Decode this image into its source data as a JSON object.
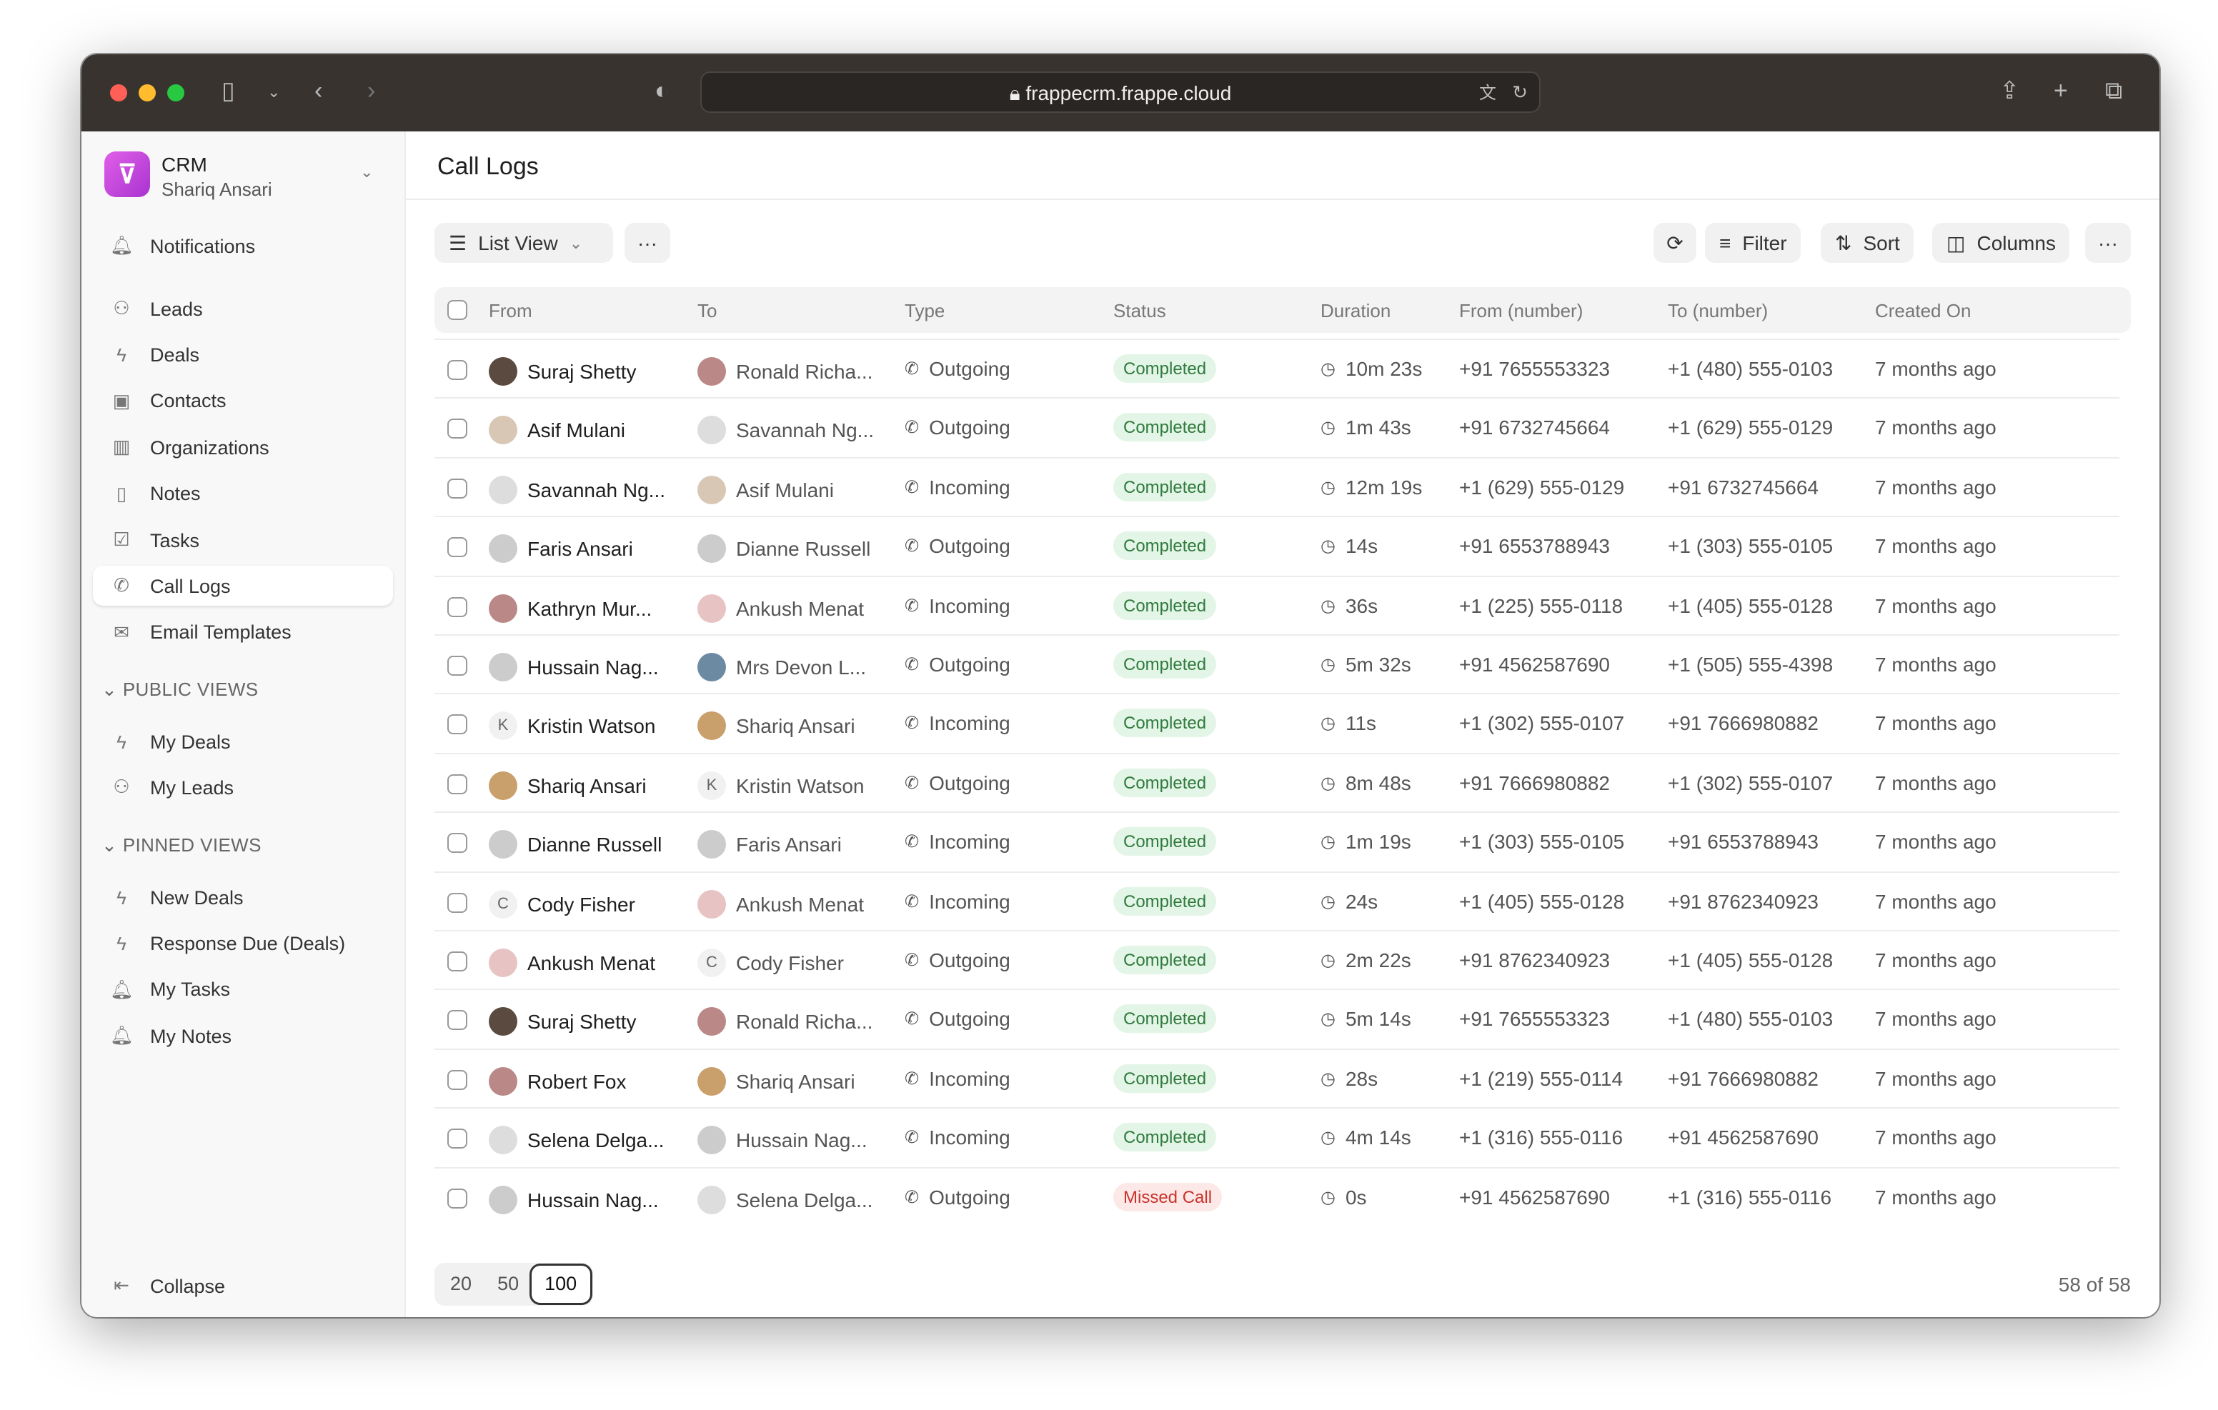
{
  "browser": {
    "url": "frappecrm.frappe.cloud"
  },
  "app": {
    "name": "CRM",
    "user": "Shariq Ansari"
  },
  "sidebar": {
    "notifications": "Notifications",
    "items": [
      {
        "label": "Leads",
        "icon": "users-icon"
      },
      {
        "label": "Deals",
        "icon": "bolt-icon"
      },
      {
        "label": "Contacts",
        "icon": "contact-icon"
      },
      {
        "label": "Organizations",
        "icon": "building-icon"
      },
      {
        "label": "Notes",
        "icon": "note-icon"
      },
      {
        "label": "Tasks",
        "icon": "check-square-icon"
      },
      {
        "label": "Call Logs",
        "icon": "phone-icon",
        "active": true
      },
      {
        "label": "Email Templates",
        "icon": "mail-icon"
      }
    ],
    "public_views_title": "PUBLIC VIEWS",
    "public_views": [
      {
        "label": "My Deals",
        "icon": "bolt-icon"
      },
      {
        "label": "My Leads",
        "icon": "users-icon"
      }
    ],
    "pinned_views_title": "PINNED VIEWS",
    "pinned_views": [
      {
        "label": "New Deals",
        "icon": "bolt-icon"
      },
      {
        "label": "Response Due (Deals)",
        "icon": "bolt-icon"
      },
      {
        "label": "My Tasks",
        "icon": "bell-icon"
      },
      {
        "label": "My Notes",
        "icon": "bell-icon"
      }
    ],
    "collapse": "Collapse"
  },
  "page": {
    "title": "Call Logs"
  },
  "toolbar": {
    "view": "List View",
    "filter": "Filter",
    "sort": "Sort",
    "columns": "Columns"
  },
  "table": {
    "columns": [
      "From",
      "To",
      "Type",
      "Status",
      "Duration",
      "From (number)",
      "To (number)",
      "Created On"
    ],
    "rows": [
      [
        "Suraj Shetty",
        "Ronald Richa...",
        "Outgoing",
        "Completed",
        "10m 23s",
        "+91 7655553323",
        "+1 (480) 555-0103",
        "7 months ago"
      ],
      [
        "Asif Mulani",
        "Savannah Ng...",
        "Outgoing",
        "Completed",
        "1m 43s",
        "+91 6732745664",
        "+1 (629) 555-0129",
        "7 months ago"
      ],
      [
        "Savannah Ng...",
        "Asif Mulani",
        "Incoming",
        "Completed",
        "12m 19s",
        "+1 (629) 555-0129",
        "+91 6732745664",
        "7 months ago"
      ],
      [
        "Faris Ansari",
        "Dianne Russell",
        "Outgoing",
        "Completed",
        "14s",
        "+91 6553788943",
        "+1 (303) 555-0105",
        "7 months ago"
      ],
      [
        "Kathryn Mur...",
        "Ankush Menat",
        "Incoming",
        "Completed",
        "36s",
        "+1 (225) 555-0118",
        "+1 (405) 555-0128",
        "7 months ago"
      ],
      [
        "Hussain Nag...",
        "Mrs Devon L...",
        "Outgoing",
        "Completed",
        "5m 32s",
        "+91 4562587690",
        "+1 (505) 555-4398",
        "7 months ago"
      ],
      [
        "Kristin Watson",
        "Shariq Ansari",
        "Incoming",
        "Completed",
        "11s",
        "+1 (302) 555-0107",
        "+91 7666980882",
        "7 months ago"
      ],
      [
        "Shariq Ansari",
        "Kristin Watson",
        "Outgoing",
        "Completed",
        "8m 48s",
        "+91 7666980882",
        "+1 (302) 555-0107",
        "7 months ago"
      ],
      [
        "Dianne Russell",
        "Faris Ansari",
        "Incoming",
        "Completed",
        "1m 19s",
        "+1 (303) 555-0105",
        "+91 6553788943",
        "7 months ago"
      ],
      [
        "Cody Fisher",
        "Ankush Menat",
        "Incoming",
        "Completed",
        "24s",
        "+1 (405) 555-0128",
        "+91 8762340923",
        "7 months ago"
      ],
      [
        "Ankush Menat",
        "Cody Fisher",
        "Outgoing",
        "Completed",
        "2m 22s",
        "+91 8762340923",
        "+1 (405) 555-0128",
        "7 months ago"
      ],
      [
        "Suraj Shetty",
        "Ronald Richa...",
        "Outgoing",
        "Completed",
        "5m 14s",
        "+91 7655553323",
        "+1 (480) 555-0103",
        "7 months ago"
      ],
      [
        "Robert Fox",
        "Shariq Ansari",
        "Incoming",
        "Completed",
        "28s",
        "+1 (219) 555-0114",
        "+91 7666980882",
        "7 months ago"
      ],
      [
        "Selena Delga...",
        "Hussain Nag...",
        "Incoming",
        "Completed",
        "4m 14s",
        "+1 (316) 555-0116",
        "+91 4562587690",
        "7 months ago"
      ],
      [
        "Hussain Nag...",
        "Selena Delga...",
        "Outgoing",
        "Missed Call",
        "0s",
        "+91 4562587690",
        "+1 (316) 555-0116",
        "7 months ago"
      ]
    ]
  },
  "pagination": {
    "sizes": [
      "20",
      "50",
      "100"
    ],
    "selected": "100",
    "count": "58 of 58"
  },
  "colors": {
    "completed_bg": "#e3f5e6",
    "completed_text": "#2f7a3d",
    "missed_bg": "#fde8e8",
    "missed_text": "#c9342c",
    "logo": "#c14ade"
  }
}
